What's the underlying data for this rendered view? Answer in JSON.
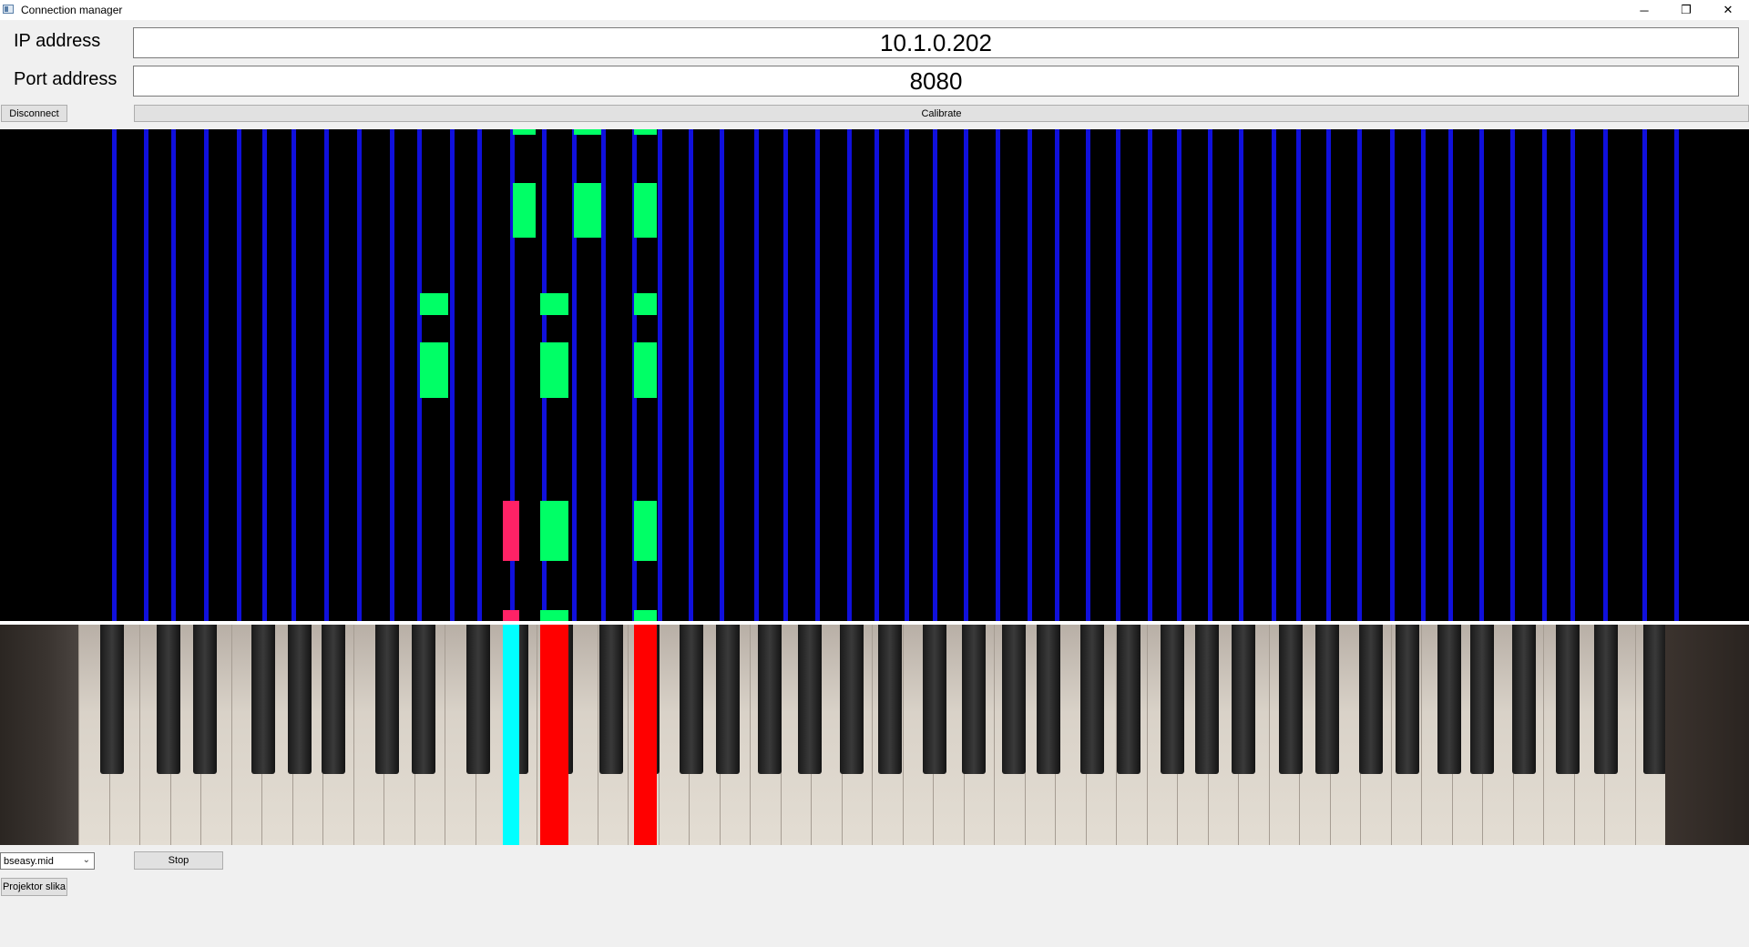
{
  "window": {
    "title": "Connection manager",
    "controls": {
      "minimize": "─",
      "restore": "❐",
      "close": "✕"
    }
  },
  "form": {
    "ip_label": "IP address",
    "ip_value": "10.1.0.202",
    "port_label": "Port address",
    "port_value": "8080"
  },
  "buttons": {
    "disconnect": "Disconnect",
    "calibrate": "Calibrate",
    "stop": "Stop",
    "projector": "Projektor slika"
  },
  "file_select": {
    "selected": "bseasy.mid"
  },
  "colors": {
    "lane": "#1010dc",
    "note_upcoming": "#00ff66",
    "note_missed": "#ff2266",
    "key_pressed_correct": "#00ffff",
    "key_pressed": "#ff0000"
  }
}
